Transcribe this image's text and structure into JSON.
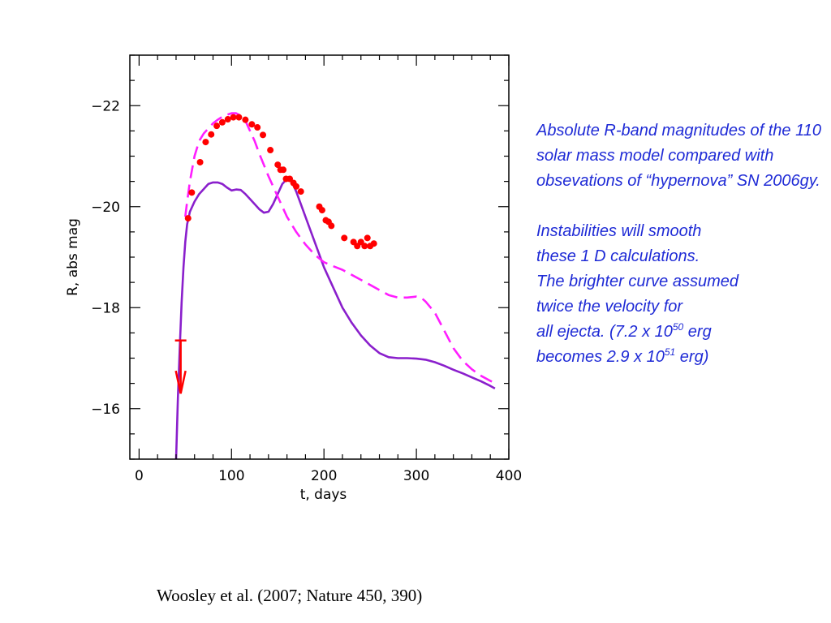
{
  "caption": {
    "para1": "Absolute R-band magnitudes of the 110 solar mass model compared with obsevations of “hypernova” SN 2006gy.",
    "para2_lines": [
      "Instabilities will smooth",
      "these 1 D calculations.",
      "The brighter curve assumed",
      "twice the velocity for"
    ],
    "line5_text": "all ejecta. (7.2 x 10",
    "line5_exp": "50",
    "line5_tail": " erg",
    "line6_text": "becomes 2.9 x 10",
    "line6_exp": "51",
    "line6_tail": " erg)"
  },
  "citation": "Woosley et al. (2007; Nature 450, 390)",
  "chart_data": {
    "type": "line",
    "xlabel": "t, days",
    "ylabel": "R, abs mag",
    "xlim": [
      -10,
      400
    ],
    "ylim": [
      -15,
      -23
    ],
    "y_inverted": true,
    "xticks": [
      0,
      100,
      200,
      300,
      400
    ],
    "xtick_labels": [
      "0",
      "100",
      "200",
      "300",
      "400"
    ],
    "yticks": [
      -16,
      -18,
      -20,
      -22
    ],
    "ytick_labels": [
      "−16",
      "−18",
      "−20",
      "−22"
    ],
    "grid": false,
    "colors": {
      "solid": "#8a1fcc",
      "dashed": "#ff1eff",
      "points": "#ff0000",
      "arrow": "#ff0000"
    },
    "series": [
      {
        "style": "solid",
        "x": [
          40,
          41,
          42,
          44,
          46,
          48,
          50,
          52,
          55,
          60,
          65,
          70,
          75,
          80,
          85,
          90,
          95,
          100,
          105,
          110,
          115,
          120,
          125,
          130,
          135,
          140,
          145,
          150,
          155,
          160,
          165,
          170,
          175,
          180,
          190,
          200,
          210,
          220,
          230,
          240,
          250,
          260,
          270,
          280,
          290,
          300,
          310,
          320,
          330,
          340,
          350,
          360,
          370,
          380,
          385
        ],
        "y": [
          -15,
          -15.6,
          -16.2,
          -17.2,
          -18.1,
          -18.8,
          -19.3,
          -19.65,
          -19.9,
          -20.1,
          -20.25,
          -20.35,
          -20.45,
          -20.48,
          -20.48,
          -20.45,
          -20.38,
          -20.32,
          -20.34,
          -20.33,
          -20.25,
          -20.15,
          -20.05,
          -19.95,
          -19.88,
          -19.9,
          -20.05,
          -20.25,
          -20.45,
          -20.55,
          -20.5,
          -20.3,
          -20.05,
          -19.8,
          -19.3,
          -18.8,
          -18.4,
          -18.0,
          -17.7,
          -17.45,
          -17.25,
          -17.1,
          -17.02,
          -17.0,
          -17.0,
          -16.99,
          -16.97,
          -16.92,
          -16.85,
          -16.77,
          -16.7,
          -16.62,
          -16.54,
          -16.45,
          -16.4
        ]
      },
      {
        "style": "dashed",
        "x": [
          50,
          52,
          55,
          60,
          65,
          70,
          75,
          80,
          85,
          90,
          95,
          100,
          105,
          110,
          115,
          120,
          125,
          130,
          140,
          150,
          160,
          170,
          180,
          190,
          200,
          210,
          220,
          230,
          240,
          250,
          260,
          270,
          280,
          290,
          300,
          305,
          310,
          320,
          330,
          340,
          350,
          360,
          370,
          380,
          385
        ],
        "y": [
          -19.8,
          -20.1,
          -20.5,
          -21.0,
          -21.3,
          -21.45,
          -21.55,
          -21.65,
          -21.72,
          -21.78,
          -21.82,
          -21.85,
          -21.85,
          -21.8,
          -21.7,
          -21.5,
          -21.3,
          -21.05,
          -20.6,
          -20.2,
          -19.8,
          -19.5,
          -19.25,
          -19.05,
          -18.9,
          -18.82,
          -18.75,
          -18.65,
          -18.55,
          -18.45,
          -18.35,
          -18.25,
          -18.2,
          -18.2,
          -18.22,
          -18.2,
          -18.12,
          -17.9,
          -17.55,
          -17.2,
          -16.95,
          -16.78,
          -16.65,
          -16.55,
          -16.5
        ]
      },
      {
        "style": "points",
        "x": [
          53,
          57,
          66,
          72,
          78,
          84,
          90,
          96,
          102,
          108,
          115,
          122,
          128,
          134,
          142,
          150,
          153,
          156,
          159,
          163,
          167,
          170,
          175,
          195,
          198,
          202,
          205,
          208,
          222,
          232,
          236,
          240,
          244,
          247,
          250,
          254
        ],
        "y": [
          -19.77,
          -20.28,
          -20.88,
          -21.28,
          -21.43,
          -21.6,
          -21.67,
          -21.73,
          -21.77,
          -21.77,
          -21.72,
          -21.63,
          -21.57,
          -21.42,
          -21.12,
          -20.83,
          -20.73,
          -20.73,
          -20.55,
          -20.55,
          -20.47,
          -20.4,
          -20.3,
          -20.0,
          -19.93,
          -19.73,
          -19.7,
          -19.62,
          -19.38,
          -19.3,
          -19.22,
          -19.3,
          -19.22,
          -19.38,
          -19.22,
          -19.27
        ]
      }
    ],
    "upper_limit": {
      "x": 45,
      "y": -17.35,
      "arrow_to": -16.3
    }
  }
}
